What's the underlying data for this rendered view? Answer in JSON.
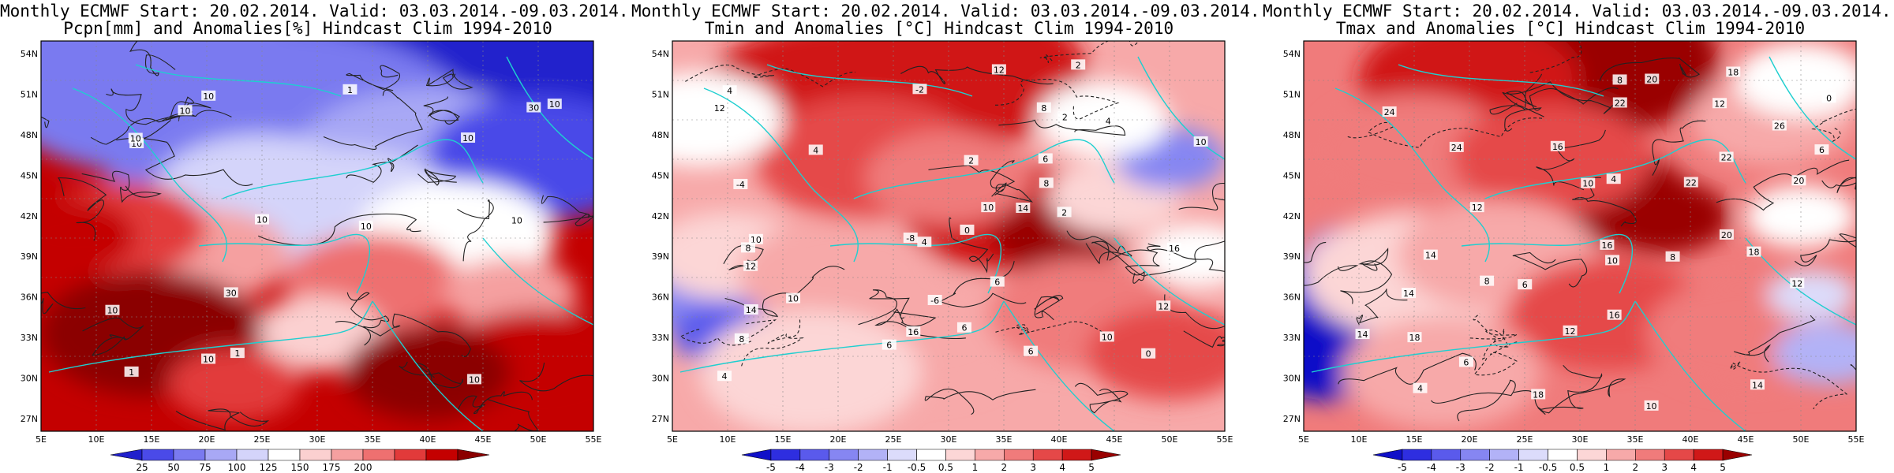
{
  "panels": [
    {
      "title_line1": "Monthly ECMWF Start: 20.02.2014. Valid: 03.03.2014.-09.03.2014.",
      "title_line2": "Pcpn[mm] and Anomalies[%] Hindcast Clim 1994-2010",
      "colorbar_ticks": [
        "25",
        "50",
        "75",
        "100",
        "125",
        "150",
        "175",
        "200"
      ],
      "colorbar_colors": [
        "#2020cc",
        "#4a4ae8",
        "#7a7af0",
        "#a8a8f5",
        "#d4d4fa",
        "#ffffff",
        "#fbd0d0",
        "#f5a0a0",
        "#ee7070",
        "#e23a3a",
        "#c40000",
        "#8b0000"
      ],
      "contour_labels": [
        "10",
        "10",
        "10",
        "10",
        "10",
        "10",
        "10",
        "10",
        "30",
        "30",
        "10",
        "10",
        "10",
        "10",
        "1",
        "1",
        "1"
      ]
    },
    {
      "title_line1": "Monthly ECMWF Start: 20.02.2014. Valid: 03.03.2014.-09.03.2014.",
      "title_line2": "Tmin and Anomalies [°C] Hindcast Clim 1994-2010",
      "colorbar_ticks": [
        "-5",
        "-4",
        "-3",
        "-2",
        "-1",
        "-0.5",
        "0.5",
        "1",
        "2",
        "3",
        "4",
        "5"
      ],
      "colorbar_colors": [
        "#1010c8",
        "#2e2ee0",
        "#5a5aec",
        "#8686f2",
        "#b2b2f7",
        "#dcdcfb",
        "#ffffff",
        "#fcd6d6",
        "#f7a9a9",
        "#f07b7b",
        "#e54848",
        "#d01818",
        "#9a0000"
      ],
      "contour_labels": [
        "2",
        "4",
        "6",
        "8",
        "0",
        "2",
        "4",
        "6",
        "8",
        "10",
        "12",
        "14",
        "16",
        "12",
        "10",
        "8",
        "6",
        "4",
        "2",
        "0",
        "-2",
        "-4",
        "-6",
        "-8",
        "4",
        "6",
        "2",
        "10",
        "12",
        "8",
        "6",
        "4",
        "14",
        "16",
        "10",
        "12",
        "10"
      ]
    },
    {
      "title_line1": "Monthly ECMWF Start: 20.02.2014. Valid: 03.03.2014.-09.03.2014.",
      "title_line2": "Tmax and Anomalies [°C] Hindcast Clim 1994-2010",
      "colorbar_ticks": [
        "-5",
        "-4",
        "-3",
        "-2",
        "-1",
        "-0.5",
        "0.5",
        "1",
        "2",
        "3",
        "4",
        "5"
      ],
      "colorbar_colors": [
        "#1010c8",
        "#2e2ee0",
        "#5a5aec",
        "#8686f2",
        "#b2b2f7",
        "#dcdcfb",
        "#ffffff",
        "#fcd6d6",
        "#f7a9a9",
        "#f07b7b",
        "#e54848",
        "#d01818",
        "#9a0000"
      ],
      "contour_labels": [
        "6",
        "8",
        "0",
        "4",
        "6",
        "8",
        "10",
        "12",
        "14",
        "16",
        "18",
        "20",
        "22",
        "24",
        "26",
        "10",
        "12",
        "14",
        "16",
        "18",
        "20",
        "22",
        "4",
        "6",
        "8",
        "12",
        "14",
        "16",
        "18",
        "10",
        "12",
        "14",
        "18",
        "20",
        "22",
        "24"
      ]
    }
  ],
  "lat_labels": [
    "54N",
    "51N",
    "48N",
    "45N",
    "42N",
    "39N",
    "36N",
    "33N",
    "30N",
    "27N"
  ],
  "lon_labels": [
    "5E",
    "10E",
    "15E",
    "20E",
    "25E",
    "30E",
    "35E",
    "40E",
    "45E",
    "50E",
    "55E"
  ]
}
